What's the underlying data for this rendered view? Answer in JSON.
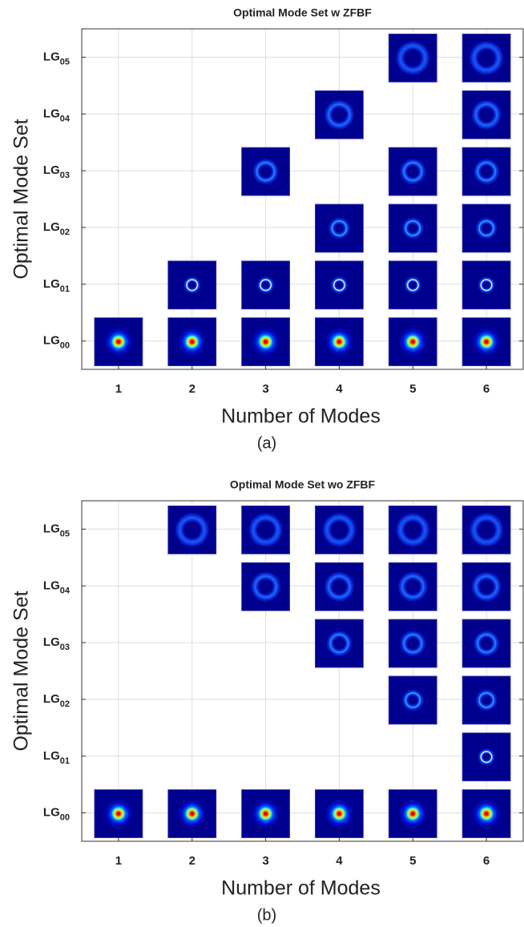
{
  "chart_data": [
    {
      "type": "mode-grid",
      "title": "Optimal Mode Set w ZFBF",
      "x_label": "Number of Modes",
      "y_label": "Optimal Mode Set",
      "caption": "(a)",
      "x": [
        1,
        2,
        3,
        4,
        5,
        6
      ],
      "xlim": [
        0.5,
        6.5
      ],
      "ylim": [
        -0.5,
        5.5
      ],
      "grid": true,
      "categories": [
        {
          "text": "LG",
          "subscript": "00"
        },
        {
          "text": "LG",
          "subscript": "01"
        },
        {
          "text": "LG",
          "subscript": "02"
        },
        {
          "text": "LG",
          "subscript": "03"
        },
        {
          "text": "LG",
          "subscript": "04"
        },
        {
          "text": "LG",
          "subscript": "05"
        }
      ],
      "mode_sets": [
        [
          0
        ],
        [
          0,
          1
        ],
        [
          0,
          1,
          3
        ],
        [
          0,
          1,
          2,
          4
        ],
        [
          0,
          1,
          2,
          3,
          5
        ],
        [
          0,
          1,
          2,
          3,
          4,
          5
        ]
      ]
    },
    {
      "type": "mode-grid",
      "title": "Optimal Mode Set wo ZFBF",
      "x_label": "Number of Modes",
      "y_label": "Optimal Mode Set",
      "caption": "(b)",
      "x": [
        1,
        2,
        3,
        4,
        5,
        6
      ],
      "xlim": [
        0.5,
        6.5
      ],
      "ylim": [
        -0.5,
        5.5
      ],
      "grid": true,
      "categories": [
        {
          "text": "LG",
          "subscript": "00"
        },
        {
          "text": "LG",
          "subscript": "01"
        },
        {
          "text": "LG",
          "subscript": "02"
        },
        {
          "text": "LG",
          "subscript": "03"
        },
        {
          "text": "LG",
          "subscript": "04"
        },
        {
          "text": "LG",
          "subscript": "05"
        }
      ],
      "mode_sets": [
        [
          0
        ],
        [
          0,
          5
        ],
        [
          0,
          4,
          5
        ],
        [
          0,
          3,
          4,
          5
        ],
        [
          0,
          2,
          3,
          4,
          5
        ],
        [
          0,
          1,
          2,
          3,
          4,
          5
        ]
      ]
    }
  ]
}
